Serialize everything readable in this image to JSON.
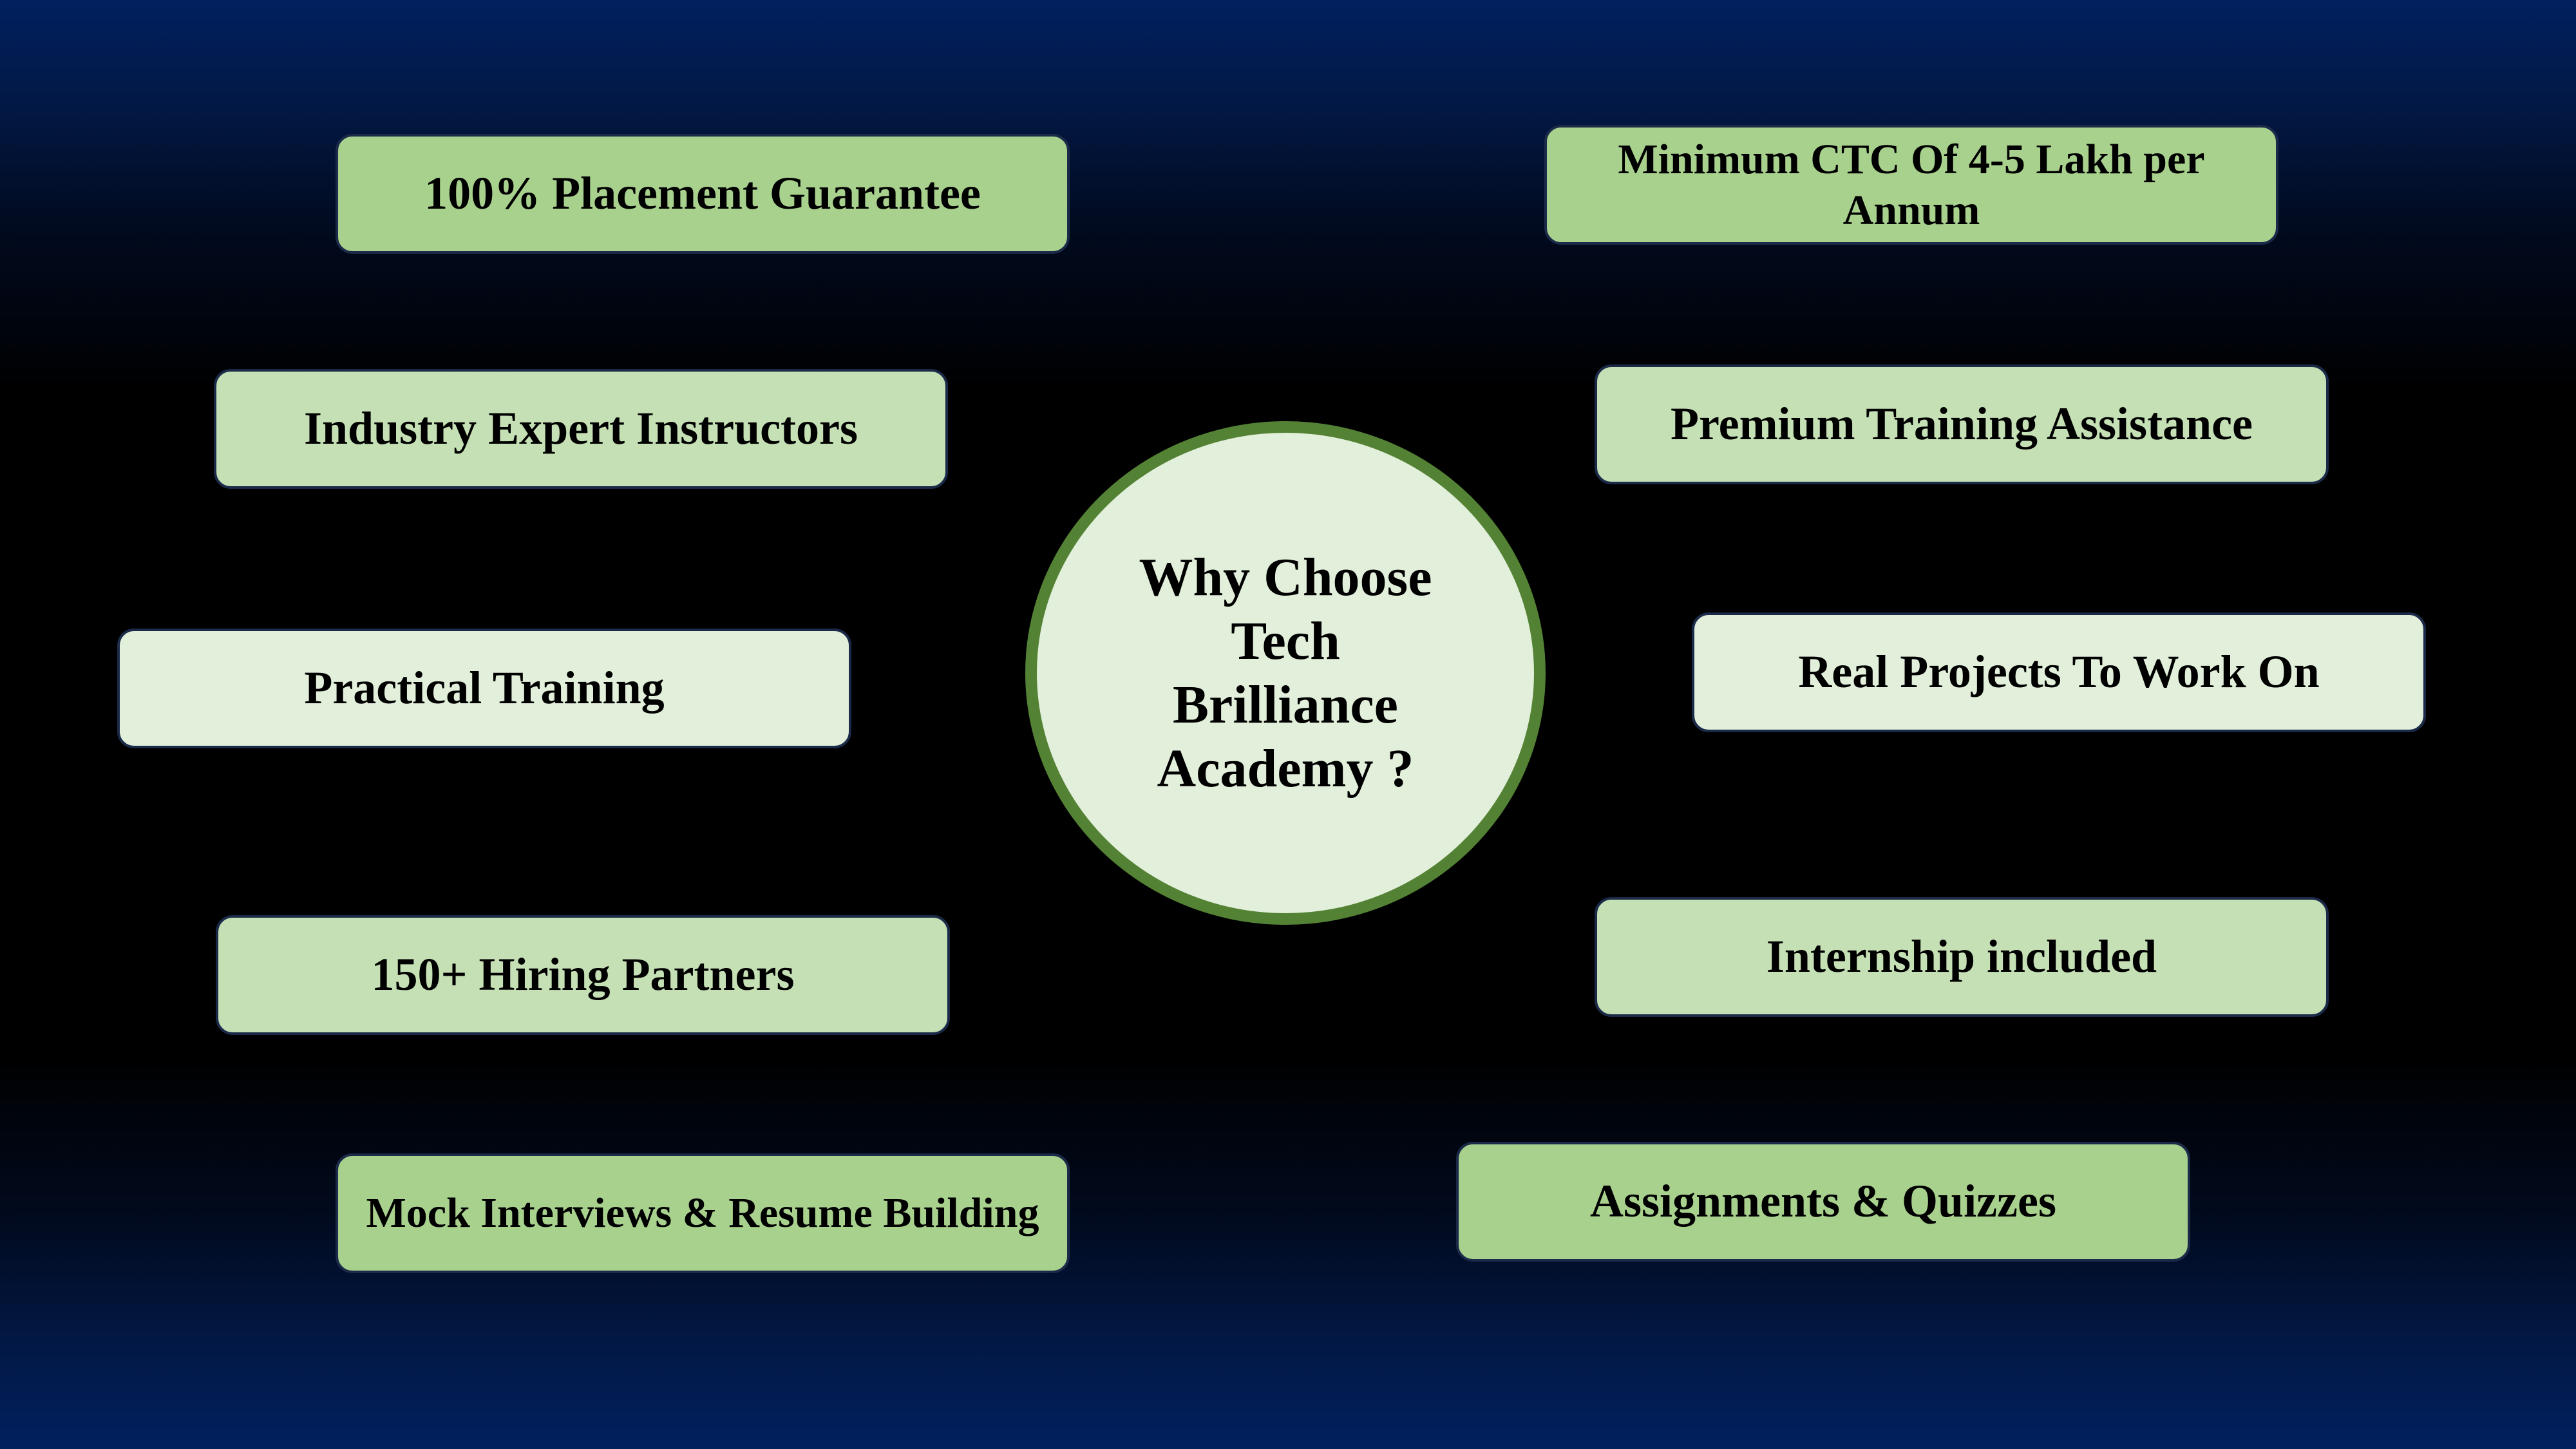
{
  "hub": {
    "title": "Why Choose Tech Brilliance Academy ?"
  },
  "benefits": {
    "left": [
      {
        "label": "100% Placement Guarantee"
      },
      {
        "label": "Industry Expert Instructors"
      },
      {
        "label": "Practical Training"
      },
      {
        "label": "150+ Hiring Partners"
      },
      {
        "label": "Mock Interviews & Resume Building"
      }
    ],
    "right": [
      {
        "label": "Minimum CTC Of 4-5 Lakh per Annum"
      },
      {
        "label": "Premium Training Assistance"
      },
      {
        "label": "Real Projects To Work On"
      },
      {
        "label": "Internship included"
      },
      {
        "label": "Assignments & Quizzes"
      }
    ]
  },
  "colors": {
    "background_top": "#01205e",
    "background_middle": "#000000",
    "card_dark_green": "#a9d18e",
    "card_mid_green": "#c5e0b4",
    "card_light_green": "#e2efda",
    "hub_border": "#548235",
    "hub_fill": "#e2efda"
  }
}
